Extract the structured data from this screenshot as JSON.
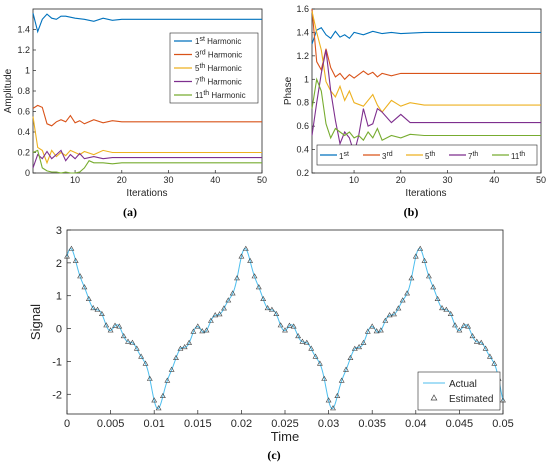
{
  "colors": {
    "h1": "#0072BD",
    "h3": "#D95319",
    "h5": "#EDB120",
    "h7": "#7E2F8E",
    "h11": "#77AC30",
    "actual": "#4DBEEE",
    "estimated": "#404040"
  },
  "chart_data": [
    {
      "type": "line",
      "panel_label": "(a)",
      "xlabel": "Iterations",
      "ylabel": "Amplitude",
      "xlim": [
        1,
        50
      ],
      "ylim": [
        0,
        1.6
      ],
      "xticks": [
        10,
        20,
        30,
        40,
        50
      ],
      "yticks": [
        0,
        0.2,
        0.4,
        0.6,
        0.8,
        1,
        1.2,
        1.4
      ],
      "ytick_labels": [
        "0",
        "0.2",
        "0.4",
        "0.6",
        "0.8",
        "1",
        "1.2",
        "1.4"
      ],
      "legend_position": "right",
      "series": [
        {
          "legend_base": "1",
          "legend_sup": "st",
          "legend_suffix": " Harmonic",
          "color_key": "h1",
          "points": [
            [
              1,
              1.56
            ],
            [
              2,
              1.38
            ],
            [
              3,
              1.5
            ],
            [
              4,
              1.55
            ],
            [
              5,
              1.51
            ],
            [
              6,
              1.5
            ],
            [
              7,
              1.53
            ],
            [
              8,
              1.53
            ],
            [
              9,
              1.52
            ],
            [
              10,
              1.51
            ],
            [
              12,
              1.5
            ],
            [
              14,
              1.48
            ],
            [
              16,
              1.51
            ],
            [
              18,
              1.49
            ],
            [
              20,
              1.5
            ],
            [
              25,
              1.5
            ],
            [
              30,
              1.5
            ],
            [
              40,
              1.5
            ],
            [
              50,
              1.5
            ]
          ]
        },
        {
          "legend_base": "3",
          "legend_sup": "rd",
          "legend_suffix": " Harmonic",
          "color_key": "h3",
          "points": [
            [
              1,
              0.63
            ],
            [
              2,
              0.66
            ],
            [
              3,
              0.64
            ],
            [
              4,
              0.48
            ],
            [
              5,
              0.46
            ],
            [
              6,
              0.5
            ],
            [
              7,
              0.52
            ],
            [
              8,
              0.5
            ],
            [
              9,
              0.56
            ],
            [
              10,
              0.49
            ],
            [
              11,
              0.51
            ],
            [
              12,
              0.48
            ],
            [
              14,
              0.52
            ],
            [
              16,
              0.49
            ],
            [
              18,
              0.51
            ],
            [
              20,
              0.5
            ],
            [
              25,
              0.5
            ],
            [
              30,
              0.5
            ],
            [
              40,
              0.5
            ],
            [
              50,
              0.5
            ]
          ]
        },
        {
          "legend_base": "5",
          "legend_sup": "th",
          "legend_suffix": " Harmonic",
          "color_key": "h5",
          "points": [
            [
              1,
              0.55
            ],
            [
              2,
              0.25
            ],
            [
              3,
              0.22
            ],
            [
              4,
              0.1
            ],
            [
              5,
              0.22
            ],
            [
              6,
              0.16
            ],
            [
              7,
              0.2
            ],
            [
              8,
              0.17
            ],
            [
              9,
              0.22
            ],
            [
              10,
              0.2
            ],
            [
              11,
              0.18
            ],
            [
              12,
              0.21
            ],
            [
              14,
              0.18
            ],
            [
              16,
              0.22
            ],
            [
              18,
              0.2
            ],
            [
              20,
              0.2
            ],
            [
              25,
              0.2
            ],
            [
              30,
              0.2
            ],
            [
              40,
              0.2
            ],
            [
              50,
              0.2
            ]
          ]
        },
        {
          "legend_base": "7",
          "legend_sup": "th",
          "legend_suffix": " Harmonic",
          "color_key": "h7",
          "points": [
            [
              1,
              0.05
            ],
            [
              2,
              0.18
            ],
            [
              3,
              0.14
            ],
            [
              4,
              0.21
            ],
            [
              5,
              0.14
            ],
            [
              6,
              0.18
            ],
            [
              7,
              0.22
            ],
            [
              8,
              0.12
            ],
            [
              9,
              0.18
            ],
            [
              10,
              0.14
            ],
            [
              11,
              0.19
            ],
            [
              12,
              0.14
            ],
            [
              14,
              0.16
            ],
            [
              16,
              0.14
            ],
            [
              18,
              0.15
            ],
            [
              20,
              0.15
            ],
            [
              25,
              0.15
            ],
            [
              30,
              0.15
            ],
            [
              40,
              0.15
            ],
            [
              50,
              0.15
            ]
          ]
        },
        {
          "legend_base": "11",
          "legend_sup": "th",
          "legend_suffix": " Harmonic",
          "color_key": "h11",
          "points": [
            [
              1,
              0.2
            ],
            [
              2,
              0.22
            ],
            [
              3,
              0.05
            ],
            [
              4,
              0.02
            ],
            [
              5,
              0.01
            ],
            [
              6,
              0.01
            ],
            [
              7,
              0.0
            ],
            [
              8,
              0.01
            ],
            [
              9,
              0.0
            ],
            [
              10,
              0.0
            ],
            [
              11,
              0.01
            ],
            [
              12,
              0.05
            ],
            [
              13,
              0.12
            ],
            [
              14,
              0.1
            ],
            [
              16,
              0.1
            ],
            [
              18,
              0.09
            ],
            [
              20,
              0.1
            ],
            [
              25,
              0.1
            ],
            [
              30,
              0.1
            ],
            [
              40,
              0.1
            ],
            [
              50,
              0.1
            ]
          ]
        }
      ]
    },
    {
      "type": "line",
      "panel_label": "(b)",
      "xlabel": "Iterations",
      "ylabel": "Phase",
      "xlim": [
        1,
        50
      ],
      "ylim": [
        0.2,
        1.6
      ],
      "xticks": [
        10,
        20,
        30,
        40,
        50
      ],
      "yticks": [
        0.2,
        0.4,
        0.6,
        0.8,
        1,
        1.2,
        1.4,
        1.6
      ],
      "ytick_labels": [
        "0.2",
        "0.4",
        "0.6",
        "0.8",
        "1",
        "1.2",
        "1.4",
        "1.6"
      ],
      "legend_position": "bottom",
      "series": [
        {
          "legend_base": "1",
          "legend_sup": "st",
          "legend_suffix": "",
          "color_key": "h1",
          "points": [
            [
              1,
              1.3
            ],
            [
              2,
              1.42
            ],
            [
              3,
              1.44
            ],
            [
              4,
              1.38
            ],
            [
              5,
              1.35
            ],
            [
              6,
              1.41
            ],
            [
              7,
              1.36
            ],
            [
              8,
              1.38
            ],
            [
              9,
              1.35
            ],
            [
              10,
              1.4
            ],
            [
              12,
              1.38
            ],
            [
              14,
              1.41
            ],
            [
              16,
              1.39
            ],
            [
              18,
              1.4
            ],
            [
              20,
              1.39
            ],
            [
              25,
              1.4
            ],
            [
              30,
              1.4
            ],
            [
              40,
              1.4
            ],
            [
              50,
              1.4
            ]
          ]
        },
        {
          "legend_base": "3",
          "legend_sup": "rd",
          "legend_suffix": "",
          "color_key": "h3",
          "points": [
            [
              1,
              1.6
            ],
            [
              2,
              1.15
            ],
            [
              3,
              1.08
            ],
            [
              4,
              1.26
            ],
            [
              5,
              1.1
            ],
            [
              6,
              1.02
            ],
            [
              7,
              1.05
            ],
            [
              8,
              1.0
            ],
            [
              9,
              1.04
            ],
            [
              10,
              1.01
            ],
            [
              12,
              1.07
            ],
            [
              13,
              1.04
            ],
            [
              14,
              1.06
            ],
            [
              15,
              1.02
            ],
            [
              16,
              1.05
            ],
            [
              18,
              1.03
            ],
            [
              20,
              1.05
            ],
            [
              25,
              1.05
            ],
            [
              30,
              1.05
            ],
            [
              40,
              1.05
            ],
            [
              50,
              1.05
            ]
          ]
        },
        {
          "legend_base": "5",
          "legend_sup": "th",
          "legend_suffix": "",
          "color_key": "h5",
          "points": [
            [
              1,
              1.58
            ],
            [
              2,
              1.4
            ],
            [
              3,
              1.25
            ],
            [
              4,
              0.98
            ],
            [
              5,
              0.9
            ],
            [
              6,
              0.85
            ],
            [
              7,
              0.94
            ],
            [
              8,
              0.82
            ],
            [
              9,
              0.9
            ],
            [
              10,
              0.8
            ],
            [
              12,
              0.77
            ],
            [
              14,
              0.87
            ],
            [
              15,
              0.78
            ],
            [
              16,
              0.72
            ],
            [
              18,
              0.82
            ],
            [
              20,
              0.77
            ],
            [
              22,
              0.8
            ],
            [
              25,
              0.78
            ],
            [
              30,
              0.78
            ],
            [
              40,
              0.78
            ],
            [
              50,
              0.78
            ]
          ]
        },
        {
          "legend_base": "7",
          "legend_sup": "th",
          "legend_suffix": "",
          "color_key": "h7",
          "points": [
            [
              1,
              0.52
            ],
            [
              2,
              0.8
            ],
            [
              3,
              1.05
            ],
            [
              4,
              1.25
            ],
            [
              5,
              0.9
            ],
            [
              6,
              0.65
            ],
            [
              7,
              0.45
            ],
            [
              8,
              0.55
            ],
            [
              9,
              0.5
            ],
            [
              10,
              0.37
            ],
            [
              11,
              0.52
            ],
            [
              12,
              0.75
            ],
            [
              13,
              0.6
            ],
            [
              14,
              0.62
            ],
            [
              15,
              0.75
            ],
            [
              16,
              0.72
            ],
            [
              18,
              0.63
            ],
            [
              20,
              0.7
            ],
            [
              22,
              0.63
            ],
            [
              25,
              0.63
            ],
            [
              30,
              0.63
            ],
            [
              40,
              0.63
            ],
            [
              50,
              0.63
            ]
          ]
        },
        {
          "legend_base": "11",
          "legend_sup": "th",
          "legend_suffix": "",
          "color_key": "h11",
          "points": [
            [
              1,
              0.75
            ],
            [
              2,
              1.0
            ],
            [
              3,
              0.9
            ],
            [
              4,
              0.62
            ],
            [
              5,
              0.5
            ],
            [
              6,
              0.58
            ],
            [
              7,
              0.55
            ],
            [
              8,
              0.52
            ],
            [
              9,
              0.55
            ],
            [
              10,
              0.5
            ],
            [
              11,
              0.52
            ],
            [
              12,
              0.48
            ],
            [
              13,
              0.55
            ],
            [
              14,
              0.5
            ],
            [
              15,
              0.58
            ],
            [
              16,
              0.48
            ],
            [
              18,
              0.52
            ],
            [
              20,
              0.5
            ],
            [
              22,
              0.53
            ],
            [
              25,
              0.52
            ],
            [
              30,
              0.52
            ],
            [
              40,
              0.52
            ],
            [
              50,
              0.52
            ]
          ]
        }
      ]
    },
    {
      "type": "line",
      "panel_label": "(c)",
      "xlabel": "Time",
      "ylabel": "Signal",
      "xlim": [
        0,
        0.05
      ],
      "ylim": [
        -2.6,
        3
      ],
      "xticks": [
        0,
        0.005,
        0.01,
        0.015,
        0.02,
        0.025,
        0.03,
        0.035,
        0.04,
        0.045,
        0.05
      ],
      "xtick_labels": [
        "0",
        "0.005",
        "0.01",
        "0.015",
        "0.02",
        "0.025",
        "0.03",
        "0.035",
        "0.04",
        "0.045",
        "0.05"
      ],
      "yticks": [
        -2,
        -1,
        0,
        1,
        2,
        3
      ],
      "ytick_labels": [
        "-2",
        "-1",
        "0",
        "1",
        "2",
        "3"
      ],
      "legend_position": "bottom-right",
      "signal_components": {
        "frequency_hz": 50,
        "amplitudes": [
          1.5,
          0.5,
          0.2,
          0.15,
          0.1
        ],
        "harmonics": [
          1,
          3,
          5,
          7,
          11
        ],
        "phases": [
          1.4,
          1.05,
          0.78,
          0.63,
          0.52
        ]
      },
      "sample_step": 0.0005,
      "series": [
        {
          "name": "Actual",
          "style": "line",
          "color_key": "actual"
        },
        {
          "name": "Estimated",
          "style": "triangle-markers",
          "color_key": "estimated"
        }
      ]
    }
  ]
}
